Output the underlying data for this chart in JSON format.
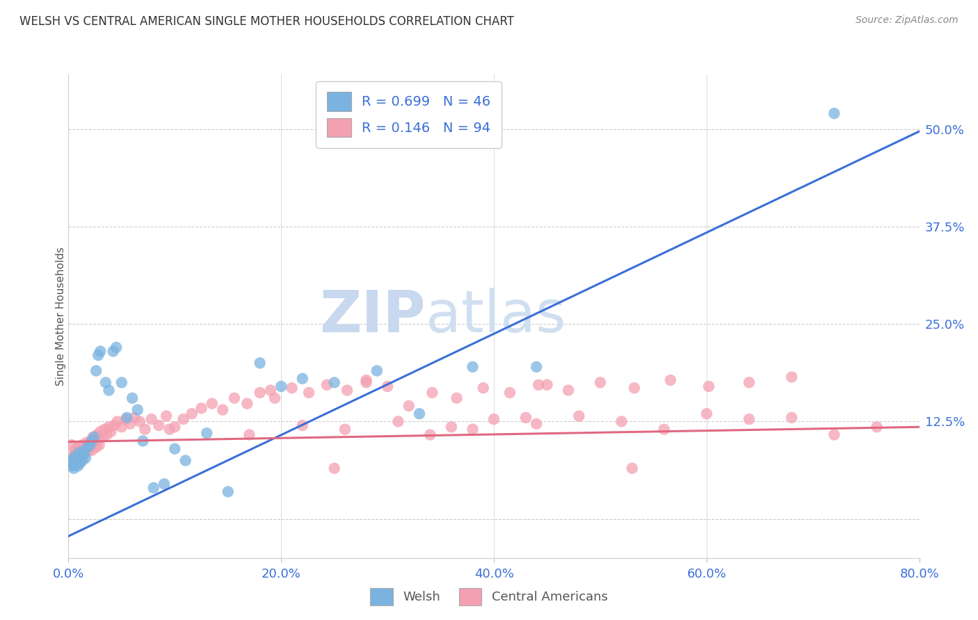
{
  "title": "WELSH VS CENTRAL AMERICAN SINGLE MOTHER HOUSEHOLDS CORRELATION CHART",
  "source": "Source: ZipAtlas.com",
  "ylabel": "Single Mother Households",
  "welsh_R": 0.699,
  "welsh_N": 46,
  "central_R": 0.146,
  "central_N": 94,
  "welsh_color": "#7ab3e0",
  "central_color": "#f4a0b0",
  "welsh_line_color": "#3a6fd8",
  "central_line_color": "#e06880",
  "legend_text_color": "#3a6fd8",
  "title_color": "#333333",
  "watermark_color_zip": "#c8d8ee",
  "watermark_color_atlas": "#c8d8ee",
  "grid_color": "#cccccc",
  "axis_label_color": "#3a6fd8",
  "source_color": "#888888",
  "xmin": 0.0,
  "xmax": 0.8,
  "ymin": -0.05,
  "ymax": 0.57,
  "ytick_values": [
    0.0,
    0.125,
    0.25,
    0.375,
    0.5
  ],
  "xtick_values": [
    0.0,
    0.2,
    0.4,
    0.6,
    0.8
  ],
  "welsh_line_x0": 0.0,
  "welsh_line_y0": -0.022,
  "welsh_line_x1": 0.8,
  "welsh_line_y1": 0.497,
  "central_line_x0": 0.0,
  "central_line_y0": 0.099,
  "central_line_x1": 0.8,
  "central_line_y1": 0.118,
  "welsh_scatter_x": [
    0.002,
    0.003,
    0.004,
    0.005,
    0.006,
    0.007,
    0.008,
    0.009,
    0.01,
    0.011,
    0.012,
    0.013,
    0.014,
    0.015,
    0.016,
    0.018,
    0.02,
    0.022,
    0.024,
    0.026,
    0.028,
    0.03,
    0.035,
    0.038,
    0.042,
    0.045,
    0.05,
    0.055,
    0.06,
    0.065,
    0.07,
    0.08,
    0.09,
    0.1,
    0.11,
    0.13,
    0.15,
    0.18,
    0.2,
    0.22,
    0.25,
    0.29,
    0.33,
    0.38,
    0.44,
    0.72
  ],
  "welsh_scatter_y": [
    0.075,
    0.068,
    0.072,
    0.065,
    0.08,
    0.07,
    0.078,
    0.068,
    0.085,
    0.072,
    0.08,
    0.075,
    0.082,
    0.088,
    0.078,
    0.092,
    0.095,
    0.1,
    0.105,
    0.19,
    0.21,
    0.215,
    0.175,
    0.165,
    0.215,
    0.22,
    0.175,
    0.13,
    0.155,
    0.14,
    0.1,
    0.04,
    0.045,
    0.09,
    0.075,
    0.11,
    0.035,
    0.2,
    0.17,
    0.18,
    0.175,
    0.19,
    0.135,
    0.195,
    0.195,
    0.52
  ],
  "central_scatter_x": [
    0.003,
    0.005,
    0.006,
    0.008,
    0.009,
    0.01,
    0.011,
    0.012,
    0.013,
    0.014,
    0.015,
    0.016,
    0.017,
    0.018,
    0.019,
    0.02,
    0.021,
    0.022,
    0.023,
    0.025,
    0.026,
    0.027,
    0.028,
    0.029,
    0.03,
    0.032,
    0.034,
    0.036,
    0.038,
    0.04,
    0.043,
    0.046,
    0.05,
    0.054,
    0.058,
    0.062,
    0.067,
    0.072,
    0.078,
    0.085,
    0.092,
    0.1,
    0.108,
    0.116,
    0.125,
    0.135,
    0.145,
    0.156,
    0.168,
    0.18,
    0.194,
    0.21,
    0.226,
    0.243,
    0.262,
    0.28,
    0.3,
    0.32,
    0.342,
    0.365,
    0.39,
    0.415,
    0.442,
    0.47,
    0.5,
    0.532,
    0.566,
    0.602,
    0.64,
    0.68,
    0.095,
    0.17,
    0.22,
    0.26,
    0.31,
    0.36,
    0.4,
    0.44,
    0.48,
    0.52,
    0.56,
    0.6,
    0.64,
    0.68,
    0.72,
    0.76,
    0.34,
    0.28,
    0.19,
    0.45,
    0.53,
    0.38,
    0.25,
    0.43
  ],
  "central_scatter_y": [
    0.095,
    0.082,
    0.088,
    0.078,
    0.092,
    0.085,
    0.09,
    0.08,
    0.095,
    0.088,
    0.092,
    0.085,
    0.098,
    0.092,
    0.088,
    0.095,
    0.1,
    0.088,
    0.105,
    0.098,
    0.092,
    0.108,
    0.102,
    0.095,
    0.112,
    0.105,
    0.115,
    0.108,
    0.118,
    0.112,
    0.12,
    0.125,
    0.118,
    0.128,
    0.122,
    0.13,
    0.125,
    0.115,
    0.128,
    0.12,
    0.132,
    0.118,
    0.128,
    0.135,
    0.142,
    0.148,
    0.14,
    0.155,
    0.148,
    0.162,
    0.155,
    0.168,
    0.162,
    0.172,
    0.165,
    0.178,
    0.17,
    0.145,
    0.162,
    0.155,
    0.168,
    0.162,
    0.172,
    0.165,
    0.175,
    0.168,
    0.178,
    0.17,
    0.175,
    0.182,
    0.115,
    0.108,
    0.12,
    0.115,
    0.125,
    0.118,
    0.128,
    0.122,
    0.132,
    0.125,
    0.115,
    0.135,
    0.128,
    0.13,
    0.108,
    0.118,
    0.108,
    0.175,
    0.165,
    0.172,
    0.065,
    0.115,
    0.065,
    0.13
  ]
}
